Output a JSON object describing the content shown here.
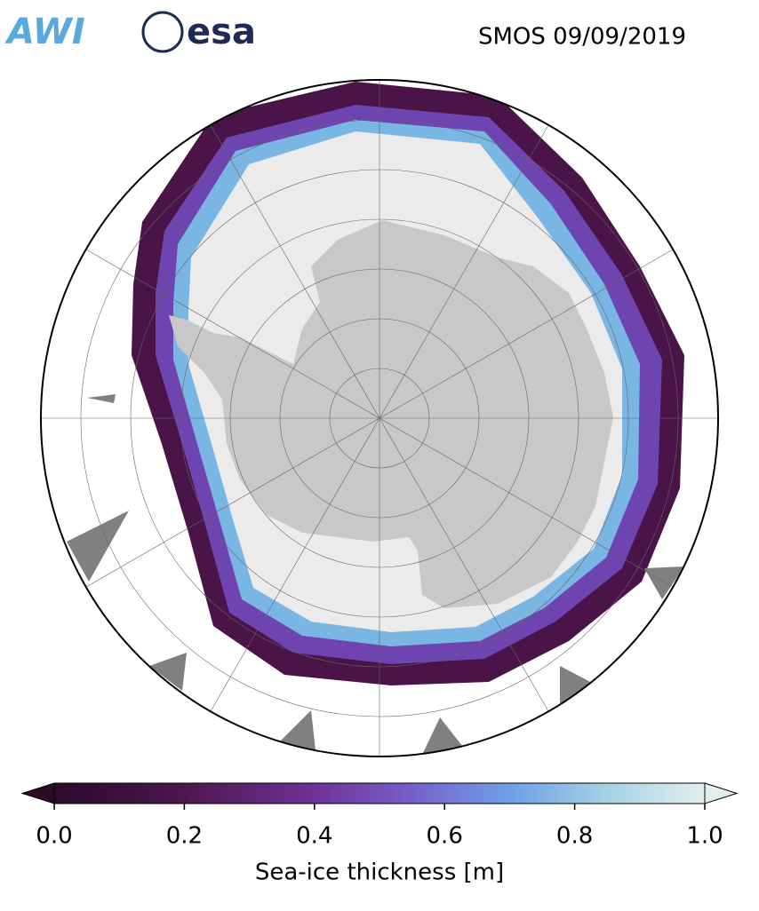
{
  "header": {
    "logos": [
      "AWI",
      "esa"
    ],
    "title": "SMOS 09/09/2019"
  },
  "colorbar": {
    "label": "Sea-ice thickness [m]",
    "lim": [
      0,
      1
    ],
    "ticks": [
      {
        "value": 0,
        "label": "0.0"
      },
      0.2,
      0.4,
      0.6,
      0.8,
      {
        "value": 1,
        "label": "1.0"
      }
    ]
  }
}
